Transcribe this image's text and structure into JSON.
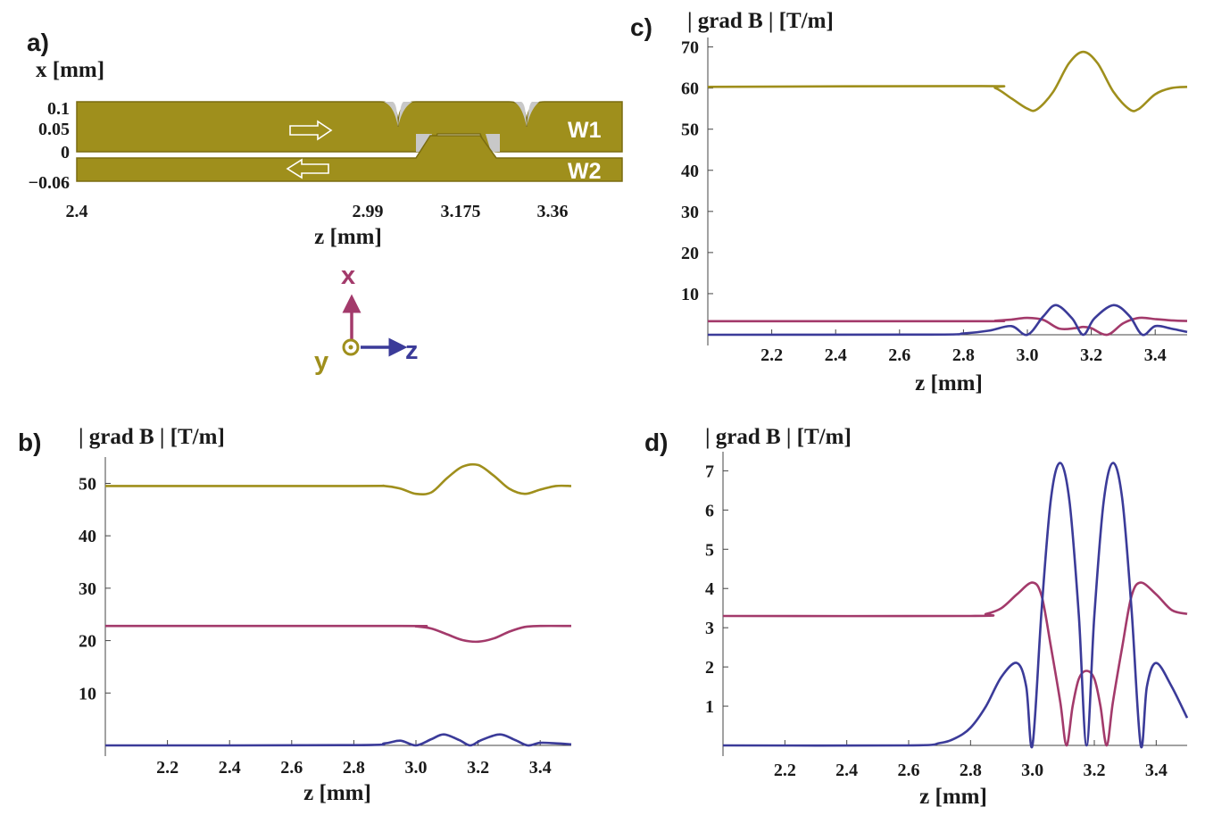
{
  "colors": {
    "olive": "#9f8f1c",
    "magenta": "#a33a6b",
    "blue": "#3b3b99",
    "gap": "#c8c8c8"
  },
  "panel_a": {
    "label": "a)",
    "ylabel": "x [mm]",
    "xlabel": "z [mm]",
    "yticks": [
      "0.1",
      "0.05",
      "0",
      "−0.06"
    ],
    "xticks": [
      "2.4",
      "2.99",
      "3.175",
      "3.36"
    ],
    "wire1": "W1",
    "wire2": "W2",
    "axes": {
      "x": "x",
      "y": "y",
      "z": "z"
    }
  },
  "chart_data": [
    {
      "id": "b",
      "type": "line",
      "panel_label": "b)",
      "ylabel": "| grad B | [T/m]",
      "xlabel": "z [mm]",
      "xlim": [
        2.0,
        3.5
      ],
      "ylim": [
        0,
        54
      ],
      "xticks": [
        2.2,
        2.4,
        2.6,
        2.8,
        3.0,
        3.2,
        3.4
      ],
      "xtick_labels": [
        "2.2",
        "2.4",
        "2.6",
        "2.8",
        "3.0",
        "3.2",
        "3.4"
      ],
      "yticks": [
        10,
        20,
        30,
        40,
        50
      ],
      "ytick_labels": [
        "10",
        "20",
        "30",
        "40",
        "50"
      ],
      "series": [
        {
          "name": "olive",
          "color": "#9f8f1c",
          "x": [
            2.0,
            2.8,
            2.9,
            2.95,
            3.0,
            3.05,
            3.1,
            3.15,
            3.2,
            3.25,
            3.3,
            3.35,
            3.4,
            3.45,
            3.5
          ],
          "y": [
            49.5,
            49.5,
            49.5,
            49.0,
            48.0,
            48.3,
            51.0,
            53.2,
            53.5,
            51.5,
            49.0,
            48.0,
            48.8,
            49.5,
            49.5
          ]
        },
        {
          "name": "magenta",
          "color": "#a33a6b",
          "x": [
            2.0,
            2.95,
            3.0,
            3.05,
            3.1,
            3.15,
            3.2,
            3.25,
            3.3,
            3.35,
            3.4,
            3.5
          ],
          "y": [
            22.8,
            22.8,
            22.7,
            22.3,
            21.2,
            20.1,
            19.8,
            20.4,
            21.7,
            22.6,
            22.8,
            22.8
          ]
        },
        {
          "name": "blue",
          "color": "#3b3b99",
          "x": [
            2.0,
            2.8,
            2.9,
            2.95,
            3.0,
            3.05,
            3.09,
            3.14,
            3.175,
            3.21,
            3.27,
            3.32,
            3.36,
            3.4,
            3.45,
            3.5
          ],
          "y": [
            0.0,
            0.05,
            0.4,
            0.9,
            0.0,
            1.2,
            2.1,
            1.0,
            0.0,
            1.0,
            2.1,
            1.0,
            0.0,
            0.5,
            0.4,
            0.2
          ]
        }
      ]
    },
    {
      "id": "c",
      "type": "line",
      "panel_label": "c)",
      "ylabel": "| grad B | [T/m]",
      "xlabel": "z [mm]",
      "xlim": [
        2.0,
        3.5
      ],
      "ylim": [
        0,
        71
      ],
      "xticks": [
        2.2,
        2.4,
        2.6,
        2.8,
        3.0,
        3.2,
        3.4
      ],
      "xtick_labels": [
        "2.2",
        "2.4",
        "2.6",
        "2.8",
        "3.0",
        "3.2",
        "3.4"
      ],
      "yticks": [
        10,
        20,
        30,
        40,
        50,
        60,
        70
      ],
      "ytick_labels": [
        "10",
        "20",
        "30",
        "40",
        "50",
        "60",
        "70"
      ],
      "series": [
        {
          "name": "olive",
          "color": "#9f8f1c",
          "x": [
            2.0,
            2.85,
            2.9,
            2.95,
            3.0,
            3.03,
            3.08,
            3.13,
            3.175,
            3.22,
            3.27,
            3.32,
            3.35,
            3.4,
            3.45,
            3.5
          ],
          "y": [
            60.3,
            60.5,
            60.0,
            57.5,
            55.0,
            54.8,
            59.0,
            66.0,
            68.8,
            66.0,
            59.0,
            54.8,
            55.0,
            58.5,
            60.0,
            60.3
          ]
        },
        {
          "name": "magenta",
          "color": "#a33a6b",
          "x": [
            2.0,
            2.85,
            2.9,
            2.95,
            3.0,
            3.05,
            3.1,
            3.15,
            3.175,
            3.2,
            3.25,
            3.3,
            3.35,
            3.4,
            3.45,
            3.5
          ],
          "y": [
            3.3,
            3.3,
            3.4,
            3.7,
            4.1,
            3.6,
            1.5,
            1.6,
            1.9,
            1.6,
            0.0,
            2.8,
            4.1,
            3.8,
            3.5,
            3.35
          ]
        },
        {
          "name": "blue",
          "color": "#3b3b99",
          "x": [
            2.0,
            2.7,
            2.8,
            2.88,
            2.95,
            3.0,
            3.05,
            3.09,
            3.14,
            3.175,
            3.21,
            3.27,
            3.32,
            3.36,
            3.4,
            3.45,
            3.5
          ],
          "y": [
            0.0,
            0.05,
            0.3,
            1.0,
            2.1,
            0.0,
            4.5,
            7.2,
            4.0,
            0.0,
            4.0,
            7.2,
            4.5,
            0.0,
            2.1,
            1.5,
            0.7
          ]
        }
      ]
    },
    {
      "id": "d",
      "type": "line",
      "panel_label": "d)",
      "ylabel": "| grad B | [T/m]",
      "xlabel": "z [mm]",
      "xlim": [
        2.0,
        3.5
      ],
      "ylim": [
        0,
        7.35
      ],
      "xticks": [
        2.2,
        2.4,
        2.6,
        2.8,
        3.0,
        3.2,
        3.4
      ],
      "xtick_labels": [
        "2.2",
        "2.4",
        "2.6",
        "2.8",
        "3.0",
        "3.2",
        "3.4"
      ],
      "yticks": [
        1,
        2,
        3,
        4,
        5,
        6,
        7
      ],
      "ytick_labels": [
        "1",
        "2",
        "3",
        "4",
        "5",
        "6",
        "7"
      ],
      "series": [
        {
          "name": "magenta",
          "color": "#a33a6b",
          "x": [
            2.0,
            2.8,
            2.85,
            2.9,
            2.95,
            3.0,
            3.03,
            3.06,
            3.09,
            3.11,
            3.13,
            3.15,
            3.175,
            3.2,
            3.22,
            3.24,
            3.26,
            3.29,
            3.32,
            3.35,
            3.4,
            3.45,
            3.5
          ],
          "y": [
            3.3,
            3.3,
            3.35,
            3.5,
            3.85,
            4.15,
            3.8,
            2.5,
            1.1,
            0.0,
            1.0,
            1.7,
            1.9,
            1.7,
            1.0,
            0.0,
            1.1,
            2.5,
            3.8,
            4.15,
            3.85,
            3.45,
            3.35
          ]
        },
        {
          "name": "blue",
          "color": "#3b3b99",
          "x": [
            2.0,
            2.6,
            2.7,
            2.75,
            2.8,
            2.85,
            2.9,
            2.95,
            2.98,
            3.0,
            3.03,
            3.06,
            3.09,
            3.12,
            3.15,
            3.175,
            3.2,
            3.23,
            3.26,
            3.29,
            3.32,
            3.35,
            3.37,
            3.4,
            3.45,
            3.5
          ],
          "y": [
            0.0,
            0.0,
            0.06,
            0.18,
            0.45,
            1.0,
            1.75,
            2.1,
            1.5,
            0.0,
            3.5,
            6.3,
            7.2,
            6.2,
            3.3,
            0.0,
            3.3,
            6.2,
            7.2,
            6.3,
            3.5,
            0.0,
            1.5,
            2.1,
            1.5,
            0.7
          ]
        }
      ]
    }
  ]
}
